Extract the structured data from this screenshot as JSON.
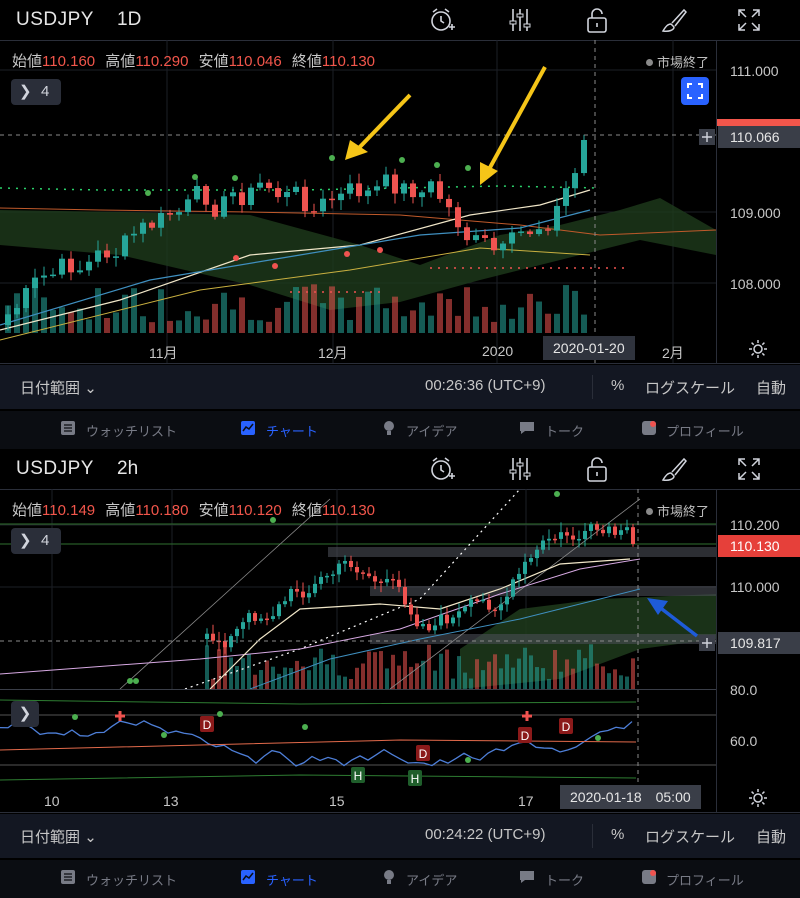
{
  "colors": {
    "up": "#26a69a",
    "down": "#ef5350",
    "accent": "#2962ff",
    "arrow_yellow": "#f5c518",
    "arrow_blue": "#1e5bd8"
  },
  "toolbar_icons": [
    "alarm-plus-icon",
    "indicators-sliders-icon",
    "lock-icon",
    "drawing-brush-icon",
    "fullscreen-icon"
  ],
  "panel1": {
    "symbol": "USDJPY",
    "interval": "1D",
    "ohlc": {
      "open_label": "始値",
      "open": "110.160",
      "high_label": "高値",
      "high": "110.290",
      "low_label": "安値",
      "low": "110.046",
      "close_label": "終値",
      "close": "110.130"
    },
    "market_status": "市場終了",
    "indicator_count": "4",
    "y_ticks": [
      "111.000",
      "109.000",
      "108.000"
    ],
    "current_price": "110.066",
    "x_ticks": [
      "11月",
      "12月",
      "2020",
      "2月"
    ],
    "crosshair_date": "2020-01-20",
    "date_range_label": "日付範囲",
    "clock": "00:26:36 (UTC+9)",
    "percent": "%",
    "log_scale": "ログスケール",
    "auto": "自動"
  },
  "panel2": {
    "symbol": "USDJPY",
    "interval": "2h",
    "ohlc": {
      "open_label": "始値",
      "open": "110.149",
      "high_label": "高値",
      "high": "110.180",
      "low_label": "安値",
      "low": "110.120",
      "close_label": "終値",
      "close": "110.130"
    },
    "market_status": "市場終了",
    "indicator_count": "4",
    "y_ticks": [
      "110.200",
      "110.000"
    ],
    "current_price": "110.130",
    "crosshair_price": "109.817",
    "rsi_ticks": [
      "80.0",
      "60.0"
    ],
    "x_ticks": [
      "10",
      "13",
      "15",
      "17"
    ],
    "crosshair_date": "2020-01-18　05:00",
    "date_range_label": "日付範囲",
    "clock": "00:24:22 (UTC+9)",
    "percent": "%",
    "log_scale": "ログスケール",
    "auto": "自動"
  },
  "tabs": [
    {
      "label": "ウォッチリスト",
      "icon": "watchlist-icon",
      "active": false
    },
    {
      "label": "チャート",
      "icon": "chart-icon",
      "active": true
    },
    {
      "label": "アイデア",
      "icon": "idea-icon",
      "active": false
    },
    {
      "label": "トーク",
      "icon": "chat-icon",
      "active": false
    },
    {
      "label": "プロフィール",
      "icon": "profile-icon",
      "active": false
    }
  ]
}
